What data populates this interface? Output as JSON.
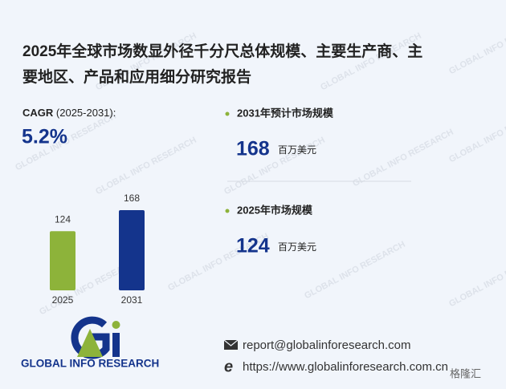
{
  "title_lines": [
    "2025年全球市场数显外径千分尺总体规模、主要生产商、主",
    "要地区、产品和应用细分研究报告"
  ],
  "cagr": {
    "label": "CAGR",
    "period": "(2025-2031):",
    "value": "5.2%"
  },
  "stats": [
    {
      "label": "2031年预计市场规模",
      "value": 168,
      "unit": "百万美元"
    },
    {
      "label": "2025年市场规模",
      "value": 124,
      "unit": "百万美元"
    }
  ],
  "chart_data": {
    "type": "bar",
    "categories": [
      "2025",
      "2031"
    ],
    "values": [
      124,
      168
    ],
    "colors": [
      "#8db33a",
      "#14348c"
    ]
  },
  "footer": {
    "logo_text": "GLOBAL INFO RESEARCH",
    "email": "report@globalinforesearch.com",
    "website": "https://www.globalinforesearch.com.cn"
  },
  "watermark": "GLOBAL INFO RESEARCH",
  "corner_logo": "格隆汇"
}
